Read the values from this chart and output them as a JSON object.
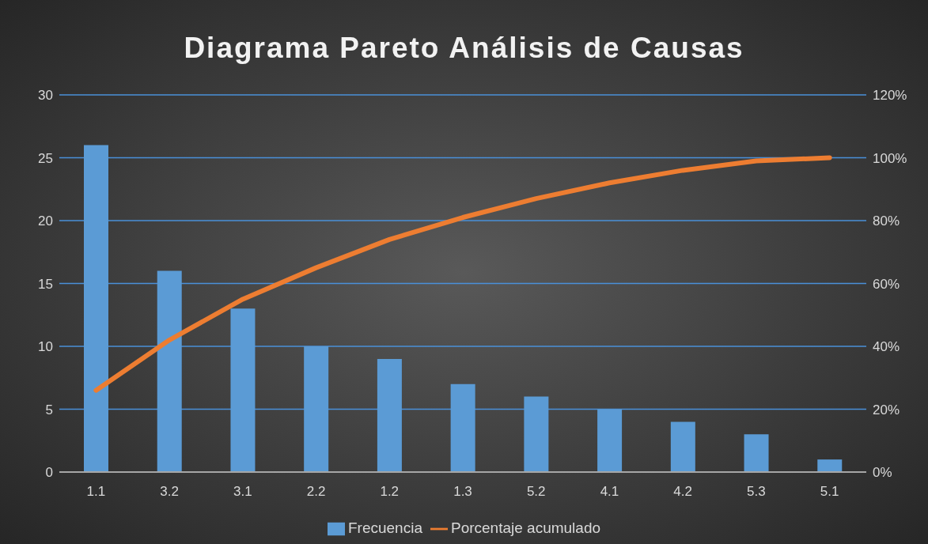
{
  "chart_data": {
    "type": "bar",
    "title": "Diagrama Pareto Análisis de Causas",
    "categories": [
      "1.1",
      "3.2",
      "3.1",
      "2.2",
      "1.2",
      "1.3",
      "5.2",
      "4.1",
      "4.2",
      "5.3",
      "5.1"
    ],
    "series": [
      {
        "name": "Frecuencia",
        "color": "#5b9bd5",
        "values": [
          26,
          16,
          13,
          10,
          9,
          7,
          6,
          5,
          4,
          3,
          1
        ]
      },
      {
        "name": "Porcentaje acumulado",
        "type": "line",
        "axis": "y2",
        "color": "#ed7d31",
        "values": [
          26,
          42,
          55,
          65,
          74,
          81,
          87,
          92,
          96,
          99,
          100
        ]
      }
    ],
    "ylim": [
      0,
      30
    ],
    "yticks": [
      0,
      5,
      10,
      15,
      20,
      25,
      30
    ],
    "y2lim": [
      0,
      120
    ],
    "y2ticks": [
      {
        "value": 0,
        "label": "0%"
      },
      {
        "value": 20,
        "label": "20%"
      },
      {
        "value": 40,
        "label": "40%"
      },
      {
        "value": 60,
        "label": "60%"
      },
      {
        "value": 80,
        "label": "80%"
      },
      {
        "value": 100,
        "label": "100%"
      },
      {
        "value": 120,
        "label": "120%"
      }
    ],
    "grid": "y",
    "legend": "bottom",
    "marker": "none",
    "line_style": "solid"
  }
}
